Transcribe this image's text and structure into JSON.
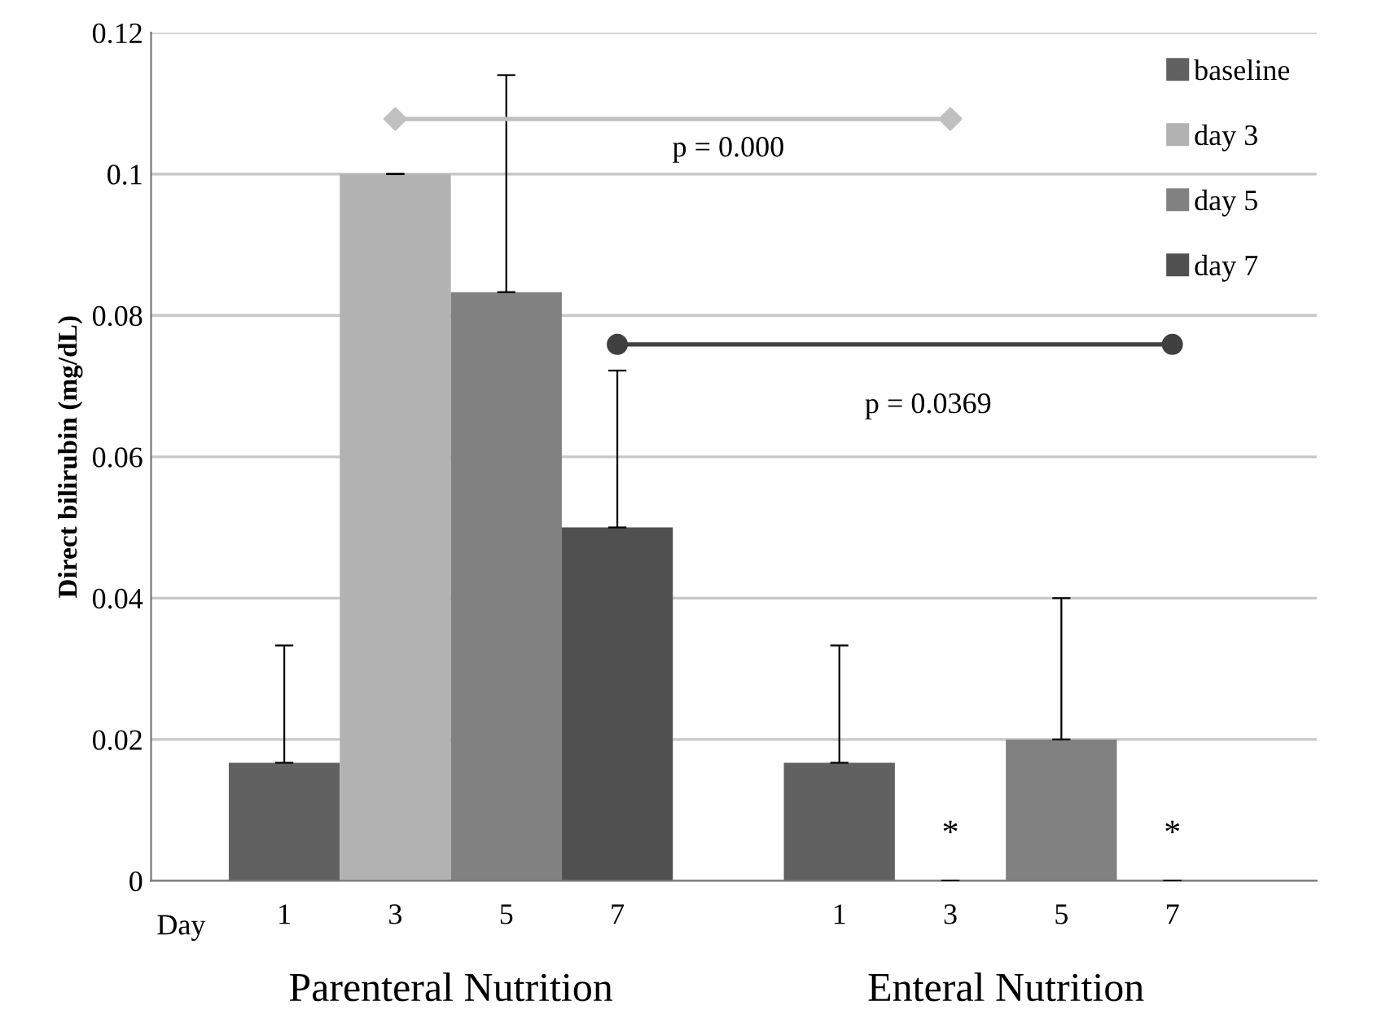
{
  "chart_data": {
    "type": "bar",
    "ylabel": "Direct bilirubin (mg/dL)",
    "categories": [
      "1",
      "3",
      "5",
      "7",
      null,
      "1",
      "3",
      "5",
      "7"
    ],
    "series": [
      {
        "name": "baseline",
        "color": "#616161",
        "values": [
          0.0167,
          null,
          null,
          null,
          null,
          0.0167,
          null,
          null,
          null
        ],
        "errors": [
          [
            0.0167,
            0.0333
          ],
          null,
          null,
          null,
          null,
          [
            0.0167,
            0.0333
          ],
          null,
          null,
          null
        ]
      },
      {
        "name": "day 3",
        "color": "#b2b2b2",
        "values": [
          null,
          0.1,
          null,
          null,
          null,
          null,
          0,
          null,
          null
        ],
        "errors": [
          null,
          [
            0.1,
            0.1
          ],
          null,
          null,
          null,
          null,
          [
            0,
            0
          ],
          null,
          null
        ]
      },
      {
        "name": "day 5",
        "color": "#818181",
        "values": [
          null,
          null,
          0.0833,
          null,
          null,
          null,
          null,
          0.02,
          null
        ],
        "errors": [
          null,
          null,
          [
            0.0833,
            0.114
          ],
          null,
          null,
          null,
          null,
          [
            0.02,
            0.04
          ],
          null
        ]
      },
      {
        "name": "day 7",
        "color": "#505050",
        "values": [
          null,
          null,
          null,
          0.05,
          null,
          null,
          null,
          null,
          0
        ],
        "errors": [
          null,
          null,
          null,
          [
            0.05,
            0.0722
          ],
          null,
          null,
          null,
          null,
          [
            0,
            0
          ]
        ]
      }
    ],
    "ylim": [
      0,
      0.12
    ],
    "yticks": [
      0,
      0.02,
      0.04,
      0.06,
      0.08,
      0.1,
      0.12
    ],
    "grid": "y",
    "legend": "top right",
    "annotations": [
      "Day",
      "Parenteral Nutrition",
      "Enteral Nutrition",
      "p = 0.000",
      "p = 0.0369",
      "*",
      "*"
    ]
  }
}
